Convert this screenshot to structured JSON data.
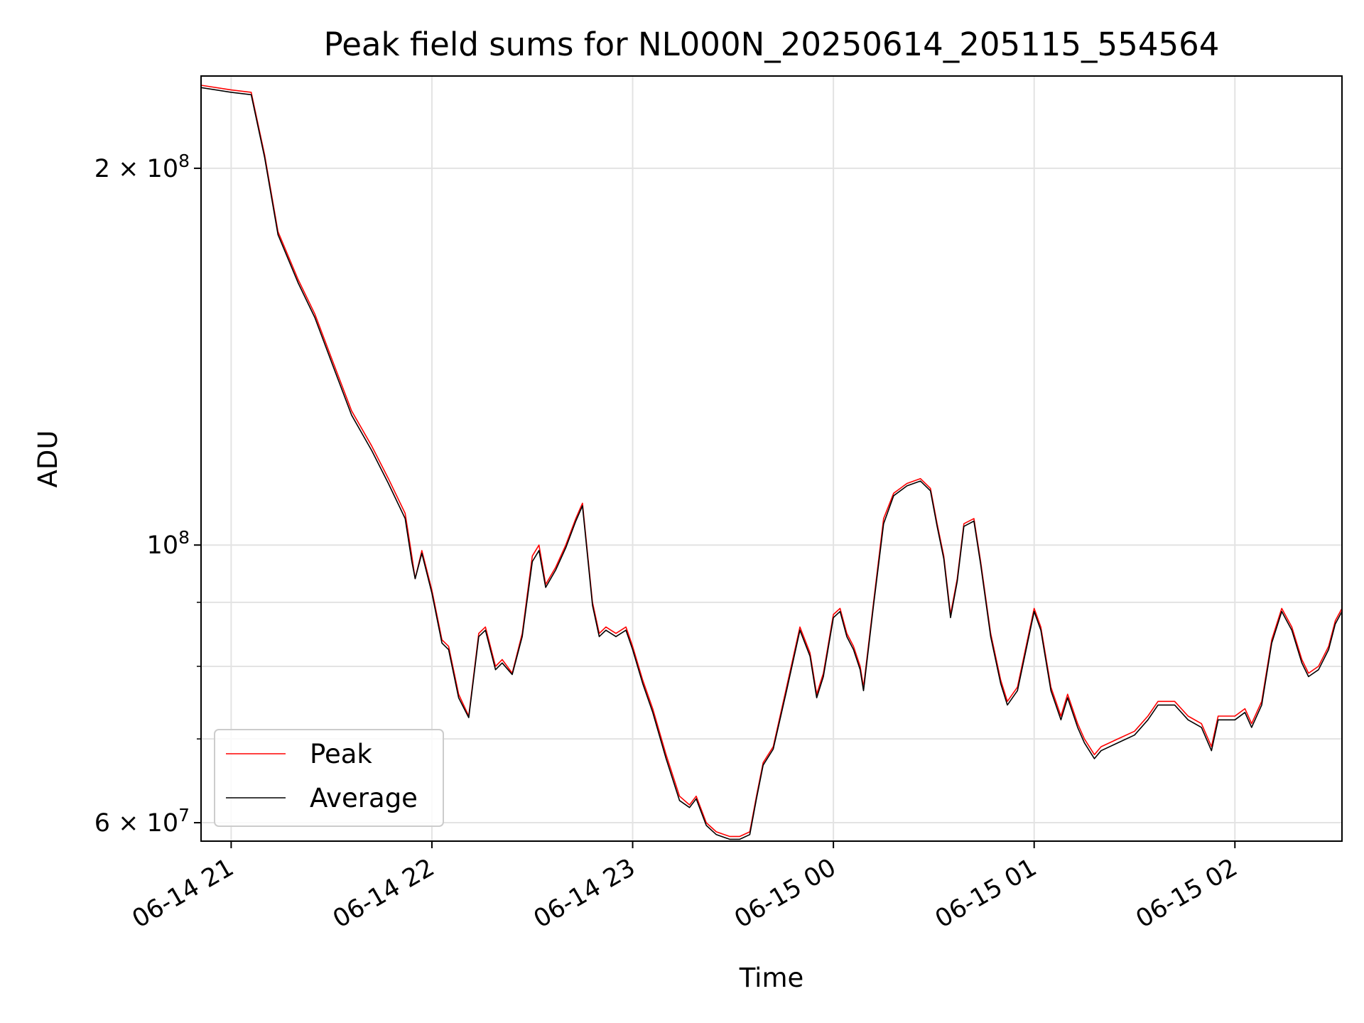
{
  "chart_data": {
    "type": "line",
    "title": "Peak field sums for NL000N_20250614_205115_554564",
    "xlabel": "Time",
    "ylabel": "ADU",
    "y_scale": "log",
    "ylim": [
      58000000,
      237000000
    ],
    "xlim": [
      "2025-06-14 20:51",
      "2025-06-15 02:32"
    ],
    "x_ticks": [
      {
        "t": "2025-06-14 21:00",
        "label": "06-14 21"
      },
      {
        "t": "2025-06-14 22:00",
        "label": "06-14 22"
      },
      {
        "t": "2025-06-14 23:00",
        "label": "06-14 23"
      },
      {
        "t": "2025-06-15 00:00",
        "label": "06-15 00"
      },
      {
        "t": "2025-06-15 01:00",
        "label": "06-15 01"
      },
      {
        "t": "2025-06-15 02:00",
        "label": "06-15 02"
      }
    ],
    "y_major_ticks": [
      {
        "value": 60000000,
        "base": "6 × 10",
        "exp": "7"
      },
      {
        "value": 100000000,
        "base": "10",
        "exp": "8"
      },
      {
        "value": 200000000,
        "base": "2 × 10",
        "exp": "8"
      }
    ],
    "y_minor_ticks": [
      70000000,
      80000000,
      90000000
    ],
    "grid": true,
    "legend_position": "lower-left",
    "series": [
      {
        "name": "Peak",
        "color": "#ff0000",
        "points": [
          [
            "2025-06-14 20:51",
            233000000
          ],
          [
            "2025-06-14 21:00",
            231000000
          ],
          [
            "2025-06-14 21:06",
            230000000
          ],
          [
            "2025-06-14 21:10",
            205000000
          ],
          [
            "2025-06-14 21:14",
            178000000
          ],
          [
            "2025-06-14 21:20",
            163000000
          ],
          [
            "2025-06-14 21:25",
            153000000
          ],
          [
            "2025-06-14 21:30",
            141000000
          ],
          [
            "2025-06-14 21:36",
            128000000
          ],
          [
            "2025-06-14 21:42",
            120000000
          ],
          [
            "2025-06-14 21:47",
            113000000
          ],
          [
            "2025-06-14 21:52",
            106000000
          ],
          [
            "2025-06-14 21:54",
            98000000
          ],
          [
            "2025-06-14 21:55",
            94000000
          ],
          [
            "2025-06-14 21:57",
            99000000
          ],
          [
            "2025-06-14 22:00",
            92000000
          ],
          [
            "2025-06-14 22:03",
            84000000
          ],
          [
            "2025-06-14 22:05",
            83000000
          ],
          [
            "2025-06-14 22:08",
            76000000
          ],
          [
            "2025-06-14 22:11",
            73000000
          ],
          [
            "2025-06-14 22:14",
            85000000
          ],
          [
            "2025-06-14 22:16",
            86000000
          ],
          [
            "2025-06-14 22:19",
            80000000
          ],
          [
            "2025-06-14 22:21",
            81000000
          ],
          [
            "2025-06-14 22:24",
            79000000
          ],
          [
            "2025-06-14 22:27",
            85000000
          ],
          [
            "2025-06-14 22:30",
            98000000
          ],
          [
            "2025-06-14 22:32",
            100000000
          ],
          [
            "2025-06-14 22:34",
            93000000
          ],
          [
            "2025-06-14 22:37",
            96000000
          ],
          [
            "2025-06-14 22:40",
            100000000
          ],
          [
            "2025-06-14 22:43",
            105000000
          ],
          [
            "2025-06-14 22:45",
            108000000
          ],
          [
            "2025-06-14 22:48",
            90000000
          ],
          [
            "2025-06-14 22:50",
            85000000
          ],
          [
            "2025-06-14 22:52",
            86000000
          ],
          [
            "2025-06-14 22:55",
            85000000
          ],
          [
            "2025-06-14 22:58",
            86000000
          ],
          [
            "2025-06-14 23:00",
            83000000
          ],
          [
            "2025-06-14 23:03",
            78000000
          ],
          [
            "2025-06-14 23:06",
            74000000
          ],
          [
            "2025-06-14 23:10",
            68000000
          ],
          [
            "2025-06-14 23:14",
            63000000
          ],
          [
            "2025-06-14 23:17",
            62000000
          ],
          [
            "2025-06-14 23:19",
            63000000
          ],
          [
            "2025-06-14 23:22",
            60000000
          ],
          [
            "2025-06-14 23:25",
            59000000
          ],
          [
            "2025-06-14 23:29",
            58500000
          ],
          [
            "2025-06-14 23:32",
            58500000
          ],
          [
            "2025-06-14 23:35",
            59000000
          ],
          [
            "2025-06-14 23:37",
            63000000
          ],
          [
            "2025-06-14 23:39",
            67000000
          ],
          [
            "2025-06-14 23:42",
            69000000
          ],
          [
            "2025-06-14 23:46",
            77000000
          ],
          [
            "2025-06-14 23:50",
            86000000
          ],
          [
            "2025-06-14 23:53",
            82000000
          ],
          [
            "2025-06-14 23:55",
            76000000
          ],
          [
            "2025-06-14 23:57",
            79000000
          ],
          [
            "2025-06-15 00:00",
            88000000
          ],
          [
            "2025-06-15 00:02",
            89000000
          ],
          [
            "2025-06-15 00:04",
            85000000
          ],
          [
            "2025-06-15 00:06",
            83000000
          ],
          [
            "2025-06-15 00:08",
            80000000
          ],
          [
            "2025-06-15 00:09",
            77000000
          ],
          [
            "2025-06-15 00:12",
            90000000
          ],
          [
            "2025-06-15 00:15",
            105000000
          ],
          [
            "2025-06-15 00:18",
            110000000
          ],
          [
            "2025-06-15 00:22",
            112000000
          ],
          [
            "2025-06-15 00:26",
            113000000
          ],
          [
            "2025-06-15 00:29",
            111000000
          ],
          [
            "2025-06-15 00:31",
            104000000
          ],
          [
            "2025-06-15 00:33",
            98000000
          ],
          [
            "2025-06-15 00:35",
            88000000
          ],
          [
            "2025-06-15 00:37",
            94000000
          ],
          [
            "2025-06-15 00:39",
            104000000
          ],
          [
            "2025-06-15 00:42",
            105000000
          ],
          [
            "2025-06-15 00:44",
            97000000
          ],
          [
            "2025-06-15 00:47",
            85000000
          ],
          [
            "2025-06-15 00:50",
            78000000
          ],
          [
            "2025-06-15 00:52",
            75000000
          ],
          [
            "2025-06-15 00:55",
            77000000
          ],
          [
            "2025-06-15 00:58",
            84000000
          ],
          [
            "2025-06-15 01:00",
            89000000
          ],
          [
            "2025-06-15 01:02",
            86000000
          ],
          [
            "2025-06-15 01:05",
            77000000
          ],
          [
            "2025-06-15 01:08",
            73000000
          ],
          [
            "2025-06-15 01:10",
            76000000
          ],
          [
            "2025-06-15 01:13",
            72000000
          ],
          [
            "2025-06-15 01:15",
            70000000
          ],
          [
            "2025-06-15 01:18",
            68000000
          ],
          [
            "2025-06-15 01:20",
            69000000
          ],
          [
            "2025-06-15 01:25",
            70000000
          ],
          [
            "2025-06-15 01:30",
            71000000
          ],
          [
            "2025-06-15 01:34",
            73000000
          ],
          [
            "2025-06-15 01:37",
            75000000
          ],
          [
            "2025-06-15 01:42",
            75000000
          ],
          [
            "2025-06-15 01:46",
            73000000
          ],
          [
            "2025-06-15 01:50",
            72000000
          ],
          [
            "2025-06-15 01:53",
            69000000
          ],
          [
            "2025-06-15 01:55",
            73000000
          ],
          [
            "2025-06-15 02:00",
            73000000
          ],
          [
            "2025-06-15 02:03",
            74000000
          ],
          [
            "2025-06-15 02:05",
            72000000
          ],
          [
            "2025-06-15 02:08",
            75000000
          ],
          [
            "2025-06-15 02:11",
            84000000
          ],
          [
            "2025-06-15 02:14",
            89000000
          ],
          [
            "2025-06-15 02:17",
            86000000
          ],
          [
            "2025-06-15 02:20",
            81000000
          ],
          [
            "2025-06-15 02:22",
            79000000
          ],
          [
            "2025-06-15 02:25",
            80000000
          ],
          [
            "2025-06-15 02:28",
            83000000
          ],
          [
            "2025-06-15 02:30",
            87000000
          ],
          [
            "2025-06-15 02:32",
            89000000
          ]
        ]
      },
      {
        "name": "Average",
        "color": "#000000",
        "points": [
          [
            "2025-06-14 20:51",
            232000000
          ],
          [
            "2025-06-14 21:00",
            230000000
          ],
          [
            "2025-06-14 21:06",
            229000000
          ],
          [
            "2025-06-14 21:10",
            204000000
          ],
          [
            "2025-06-14 21:14",
            177000000
          ],
          [
            "2025-06-14 21:20",
            162000000
          ],
          [
            "2025-06-14 21:25",
            152000000
          ],
          [
            "2025-06-14 21:30",
            140000000
          ],
          [
            "2025-06-14 21:36",
            127000000
          ],
          [
            "2025-06-14 21:42",
            119000000
          ],
          [
            "2025-06-14 21:47",
            112000000
          ],
          [
            "2025-06-14 21:52",
            105000000
          ],
          [
            "2025-06-14 21:54",
            97000000
          ],
          [
            "2025-06-14 21:55",
            94000000
          ],
          [
            "2025-06-14 21:57",
            98500000
          ],
          [
            "2025-06-14 22:00",
            91500000
          ],
          [
            "2025-06-14 22:03",
            83500000
          ],
          [
            "2025-06-14 22:05",
            82500000
          ],
          [
            "2025-06-14 22:08",
            75500000
          ],
          [
            "2025-06-14 22:11",
            72800000
          ],
          [
            "2025-06-14 22:14",
            84500000
          ],
          [
            "2025-06-14 22:16",
            85500000
          ],
          [
            "2025-06-14 22:19",
            79500000
          ],
          [
            "2025-06-14 22:21",
            80500000
          ],
          [
            "2025-06-14 22:24",
            78800000
          ],
          [
            "2025-06-14 22:27",
            84500000
          ],
          [
            "2025-06-14 22:30",
            97000000
          ],
          [
            "2025-06-14 22:32",
            99000000
          ],
          [
            "2025-06-14 22:34",
            92500000
          ],
          [
            "2025-06-14 22:37",
            95500000
          ],
          [
            "2025-06-14 22:40",
            99500000
          ],
          [
            "2025-06-14 22:43",
            104500000
          ],
          [
            "2025-06-14 22:45",
            107500000
          ],
          [
            "2025-06-14 22:48",
            89500000
          ],
          [
            "2025-06-14 22:50",
            84500000
          ],
          [
            "2025-06-14 22:52",
            85500000
          ],
          [
            "2025-06-14 22:55",
            84500000
          ],
          [
            "2025-06-14 22:58",
            85500000
          ],
          [
            "2025-06-14 23:00",
            82500000
          ],
          [
            "2025-06-14 23:03",
            77500000
          ],
          [
            "2025-06-14 23:06",
            73500000
          ],
          [
            "2025-06-14 23:10",
            67500000
          ],
          [
            "2025-06-14 23:14",
            62500000
          ],
          [
            "2025-06-14 23:17",
            61700000
          ],
          [
            "2025-06-14 23:19",
            62700000
          ],
          [
            "2025-06-14 23:22",
            59700000
          ],
          [
            "2025-06-14 23:25",
            58700000
          ],
          [
            "2025-06-14 23:29",
            58200000
          ],
          [
            "2025-06-14 23:32",
            58200000
          ],
          [
            "2025-06-14 23:35",
            58700000
          ],
          [
            "2025-06-14 23:37",
            62700000
          ],
          [
            "2025-06-14 23:39",
            66700000
          ],
          [
            "2025-06-14 23:42",
            68700000
          ],
          [
            "2025-06-14 23:46",
            76500000
          ],
          [
            "2025-06-14 23:50",
            85500000
          ],
          [
            "2025-06-14 23:53",
            81500000
          ],
          [
            "2025-06-14 23:55",
            75500000
          ],
          [
            "2025-06-14 23:57",
            78500000
          ],
          [
            "2025-06-15 00:00",
            87500000
          ],
          [
            "2025-06-15 00:02",
            88500000
          ],
          [
            "2025-06-15 00:04",
            84500000
          ],
          [
            "2025-06-15 00:06",
            82500000
          ],
          [
            "2025-06-15 00:08",
            79500000
          ],
          [
            "2025-06-15 00:09",
            76500000
          ],
          [
            "2025-06-15 00:12",
            89500000
          ],
          [
            "2025-06-15 00:15",
            104000000
          ],
          [
            "2025-06-15 00:18",
            109500000
          ],
          [
            "2025-06-15 00:22",
            111500000
          ],
          [
            "2025-06-15 00:26",
            112500000
          ],
          [
            "2025-06-15 00:29",
            110500000
          ],
          [
            "2025-06-15 00:31",
            103500000
          ],
          [
            "2025-06-15 00:33",
            97500000
          ],
          [
            "2025-06-15 00:35",
            87500000
          ],
          [
            "2025-06-15 00:37",
            93500000
          ],
          [
            "2025-06-15 00:39",
            103500000
          ],
          [
            "2025-06-15 00:42",
            104500000
          ],
          [
            "2025-06-15 00:44",
            96500000
          ],
          [
            "2025-06-15 00:47",
            84500000
          ],
          [
            "2025-06-15 00:50",
            77500000
          ],
          [
            "2025-06-15 00:52",
            74500000
          ],
          [
            "2025-06-15 00:55",
            76500000
          ],
          [
            "2025-06-15 00:58",
            83500000
          ],
          [
            "2025-06-15 01:00",
            88500000
          ],
          [
            "2025-06-15 01:02",
            85500000
          ],
          [
            "2025-06-15 01:05",
            76500000
          ],
          [
            "2025-06-15 01:08",
            72500000
          ],
          [
            "2025-06-15 01:10",
            75500000
          ],
          [
            "2025-06-15 01:13",
            71500000
          ],
          [
            "2025-06-15 01:15",
            69500000
          ],
          [
            "2025-06-15 01:18",
            67500000
          ],
          [
            "2025-06-15 01:20",
            68500000
          ],
          [
            "2025-06-15 01:25",
            69500000
          ],
          [
            "2025-06-15 01:30",
            70500000
          ],
          [
            "2025-06-15 01:34",
            72500000
          ],
          [
            "2025-06-15 01:37",
            74500000
          ],
          [
            "2025-06-15 01:42",
            74500000
          ],
          [
            "2025-06-15 01:46",
            72500000
          ],
          [
            "2025-06-15 01:50",
            71500000
          ],
          [
            "2025-06-15 01:53",
            68500000
          ],
          [
            "2025-06-15 01:55",
            72500000
          ],
          [
            "2025-06-15 02:00",
            72500000
          ],
          [
            "2025-06-15 02:03",
            73500000
          ],
          [
            "2025-06-15 02:05",
            71500000
          ],
          [
            "2025-06-15 02:08",
            74500000
          ],
          [
            "2025-06-15 02:11",
            83500000
          ],
          [
            "2025-06-15 02:14",
            88500000
          ],
          [
            "2025-06-15 02:17",
            85500000
          ],
          [
            "2025-06-15 02:20",
            80500000
          ],
          [
            "2025-06-15 02:22",
            78500000
          ],
          [
            "2025-06-15 02:25",
            79500000
          ],
          [
            "2025-06-15 02:28",
            82500000
          ],
          [
            "2025-06-15 02:30",
            86500000
          ],
          [
            "2025-06-15 02:32",
            88500000
          ]
        ]
      }
    ]
  }
}
